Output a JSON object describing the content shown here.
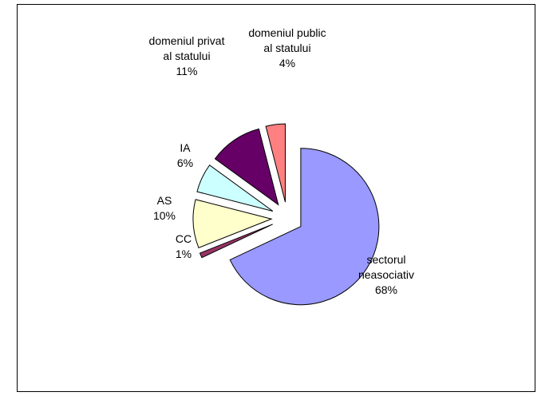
{
  "chart_data": {
    "type": "pie",
    "exploded": true,
    "legend": "none",
    "slices": [
      {
        "label_lines": [
          "sectorul",
          "neasociativ"
        ],
        "percent_label": "68%",
        "value": 68,
        "color": "#9999ff"
      },
      {
        "label_lines": [
          "CC"
        ],
        "percent_label": "1%",
        "value": 1,
        "color": "#993366"
      },
      {
        "label_lines": [
          "AS"
        ],
        "percent_label": "10%",
        "value": 10,
        "color": "#ffffcc"
      },
      {
        "label_lines": [
          "IA"
        ],
        "percent_label": "6%",
        "value": 6,
        "color": "#ccffff"
      },
      {
        "label_lines": [
          "domeniul privat",
          "al statului"
        ],
        "percent_label": "11%",
        "value": 11,
        "color": "#660066"
      },
      {
        "label_lines": [
          "domeniul public",
          "al statului"
        ],
        "percent_label": "4%",
        "value": 4,
        "color": "#ff8080"
      }
    ]
  }
}
